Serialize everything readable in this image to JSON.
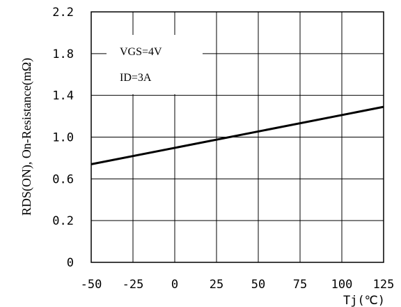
{
  "chart_data": {
    "type": "line",
    "ylabel": "RDS(ON), On-Resistance(mΩ)",
    "xlabel": "Tj(℃)",
    "x_ticks": [
      "-50",
      "-25",
      "0",
      "25",
      "50",
      "75",
      "100",
      "125"
    ],
    "y_ticks": [
      "0",
      "0.2",
      "0.6",
      "1.0",
      "1.4",
      "1.8",
      "2.2"
    ],
    "xlim": [
      -50,
      125
    ],
    "grid": true,
    "annotations": [
      "VGS=4V",
      "ID=3A"
    ],
    "series": [
      {
        "x": [
          -50,
          125
        ],
        "y": [
          0.74,
          1.29
        ]
      }
    ]
  }
}
